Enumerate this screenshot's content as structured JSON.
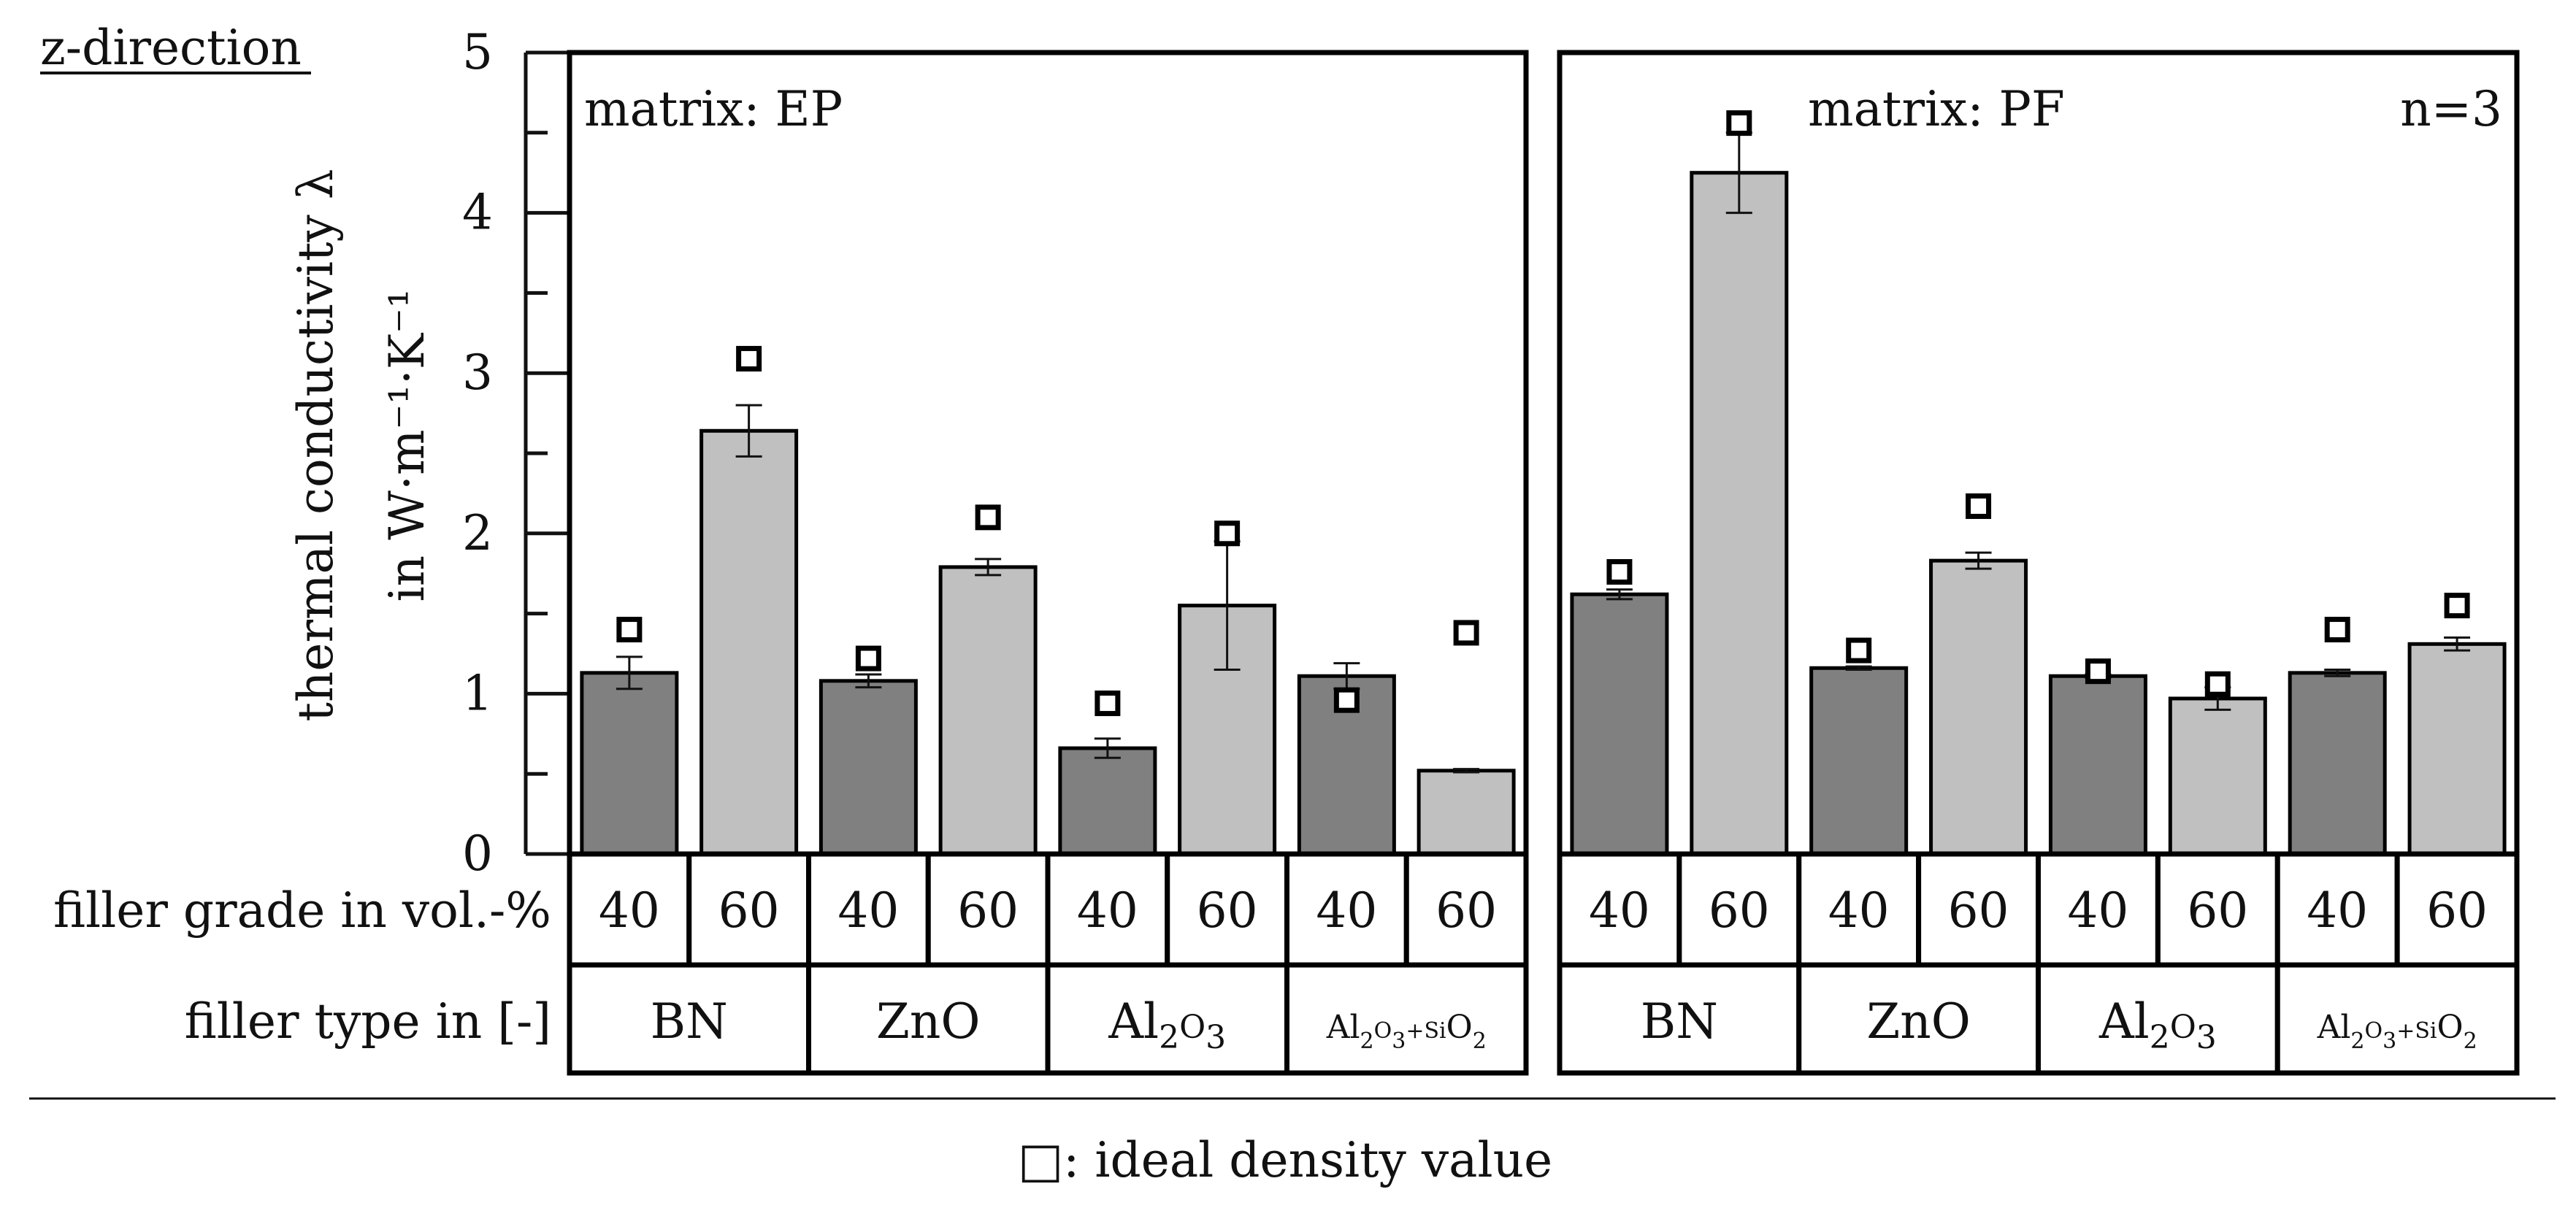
{
  "chart_data": {
    "type": "bar",
    "direction_label": "z-direction",
    "ylabel_line1": "thermal conductivity λ",
    "ylabel_line2": "in W·m⁻¹·K⁻¹",
    "ylim": [
      0,
      5
    ],
    "yticks": [
      "0",
      "1",
      "2",
      "3",
      "4",
      "5"
    ],
    "sample_note": "n=3",
    "grade_row_label": "filler grade in vol.-%",
    "type_row_label": "filler type in [-]",
    "legend": "□: ideal density value",
    "colors": {
      "grade_40": "#808080",
      "grade_60": "#c0c0c0",
      "frame": "#000000"
    },
    "filler_types": [
      {
        "base": "BN"
      },
      {
        "base": "ZnO"
      },
      {
        "base": "Al",
        "sub1": "2",
        "mid": "O",
        "sub2": "3"
      },
      {
        "base": "Al",
        "sub1": "2",
        "mid": "O",
        "sub2": "3",
        "plus": "+Si",
        "mid2": "O",
        "sub3": "2"
      }
    ],
    "panels": [
      {
        "title": "matrix: EP",
        "bars": [
          {
            "type": "BN",
            "grade": "40",
            "value": 1.13,
            "err": 0.1,
            "ideal": 1.4
          },
          {
            "type": "BN",
            "grade": "60",
            "value": 2.64,
            "err": 0.16,
            "ideal": 3.09
          },
          {
            "type": "ZnO",
            "grade": "40",
            "value": 1.08,
            "err": 0.04,
            "ideal": 1.22
          },
          {
            "type": "ZnO",
            "grade": "60",
            "value": 1.79,
            "err": 0.05,
            "ideal": 2.1
          },
          {
            "type": "Al2O3",
            "grade": "40",
            "value": 0.66,
            "err": 0.06,
            "ideal": 0.94
          },
          {
            "type": "Al2O3",
            "grade": "60",
            "value": 1.55,
            "err": 0.4,
            "ideal": 2.0
          },
          {
            "type": "Al2O3+SiO2",
            "grade": "40",
            "value": 1.11,
            "err": 0.08,
            "ideal": 0.96
          },
          {
            "type": "Al2O3+SiO2",
            "grade": "60",
            "value": 0.52,
            "err": 0.01,
            "ideal": 1.38
          }
        ]
      },
      {
        "title": "matrix: PF",
        "bars": [
          {
            "type": "BN",
            "grade": "40",
            "value": 1.62,
            "err": 0.03,
            "ideal": 1.76
          },
          {
            "type": "BN",
            "grade": "60",
            "value": 4.25,
            "err": 0.25,
            "ideal": 4.56
          },
          {
            "type": "ZnO",
            "grade": "40",
            "value": 1.16,
            "err": 0.01,
            "ideal": 1.27
          },
          {
            "type": "ZnO",
            "grade": "60",
            "value": 1.83,
            "err": 0.05,
            "ideal": 2.17
          },
          {
            "type": "Al2O3",
            "grade": "40",
            "value": 1.11,
            "err": 0.01,
            "ideal": 1.14
          },
          {
            "type": "Al2O3",
            "grade": "60",
            "value": 0.97,
            "err": 0.07,
            "ideal": 1.06
          },
          {
            "type": "Al2O3+SiO2",
            "grade": "40",
            "value": 1.13,
            "err": 0.02,
            "ideal": 1.4
          },
          {
            "type": "Al2O3+SiO2",
            "grade": "60",
            "value": 1.31,
            "err": 0.04,
            "ideal": 1.55
          }
        ]
      }
    ]
  }
}
